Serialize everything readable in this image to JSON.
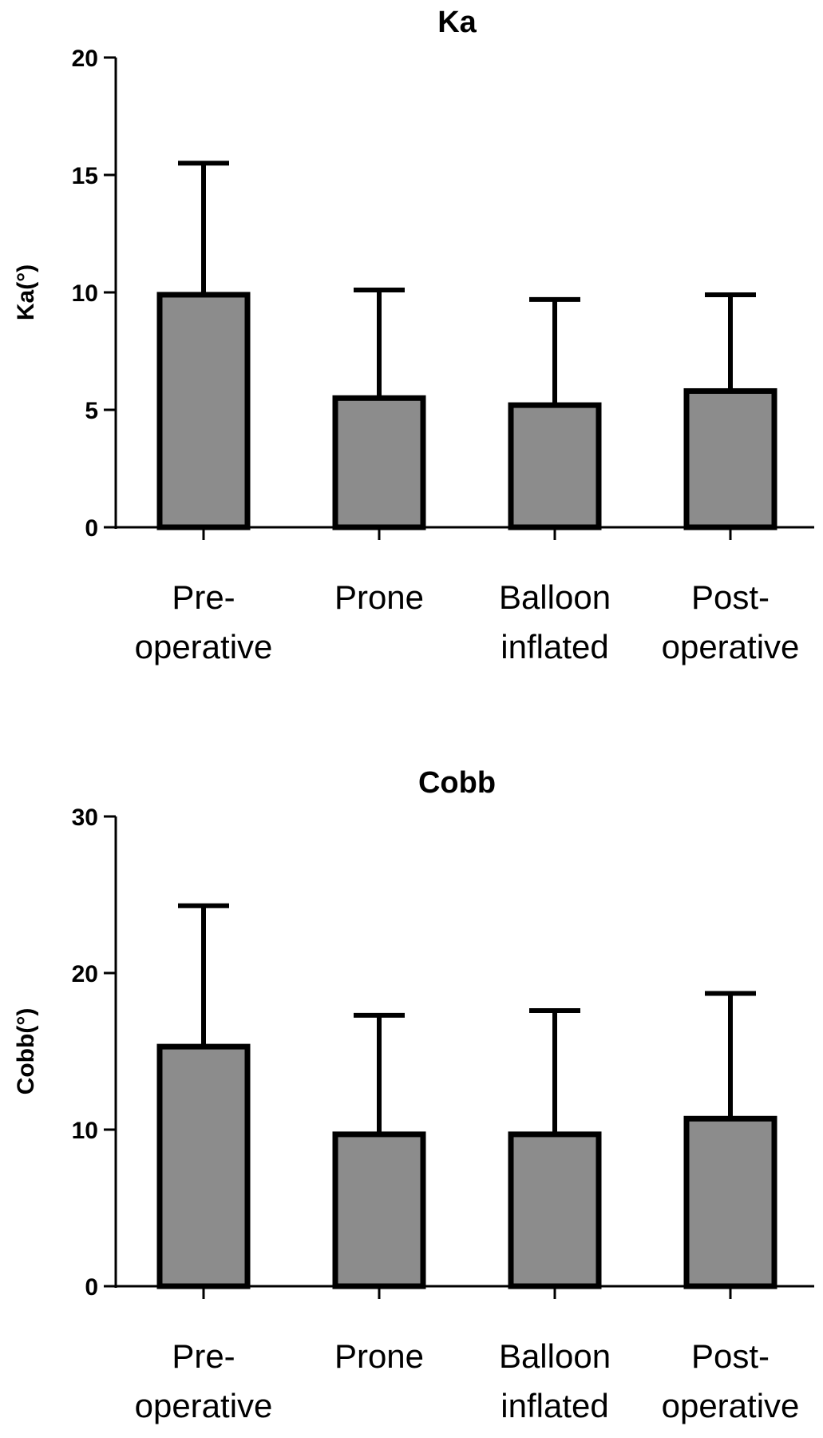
{
  "chart_data": [
    {
      "type": "bar",
      "title": "Ka",
      "ylabel": "Ka(°)",
      "xlabel": "",
      "ylim": [
        0,
        20
      ],
      "yticks": [
        0,
        5,
        10,
        15,
        20
      ],
      "categories": [
        [
          "Pre-",
          "operative"
        ],
        [
          "Prone"
        ],
        [
          "Balloon",
          "inflated"
        ],
        [
          "Post-",
          "operative"
        ]
      ],
      "values": [
        9.9,
        5.5,
        5.2,
        5.8
      ],
      "error_upper": [
        15.5,
        10.1,
        9.7,
        9.9
      ],
      "bar_color": "#8c8c8c",
      "grid": false
    },
    {
      "type": "bar",
      "title": "Cobb",
      "ylabel": "Cobb(°)",
      "xlabel": "",
      "ylim": [
        0,
        30
      ],
      "yticks": [
        0,
        10,
        20,
        30
      ],
      "categories": [
        [
          "Pre-",
          "operative"
        ],
        [
          "Prone"
        ],
        [
          "Balloon",
          "inflated"
        ],
        [
          "Post-",
          "operative"
        ]
      ],
      "values": [
        15.3,
        9.7,
        9.7,
        10.7
      ],
      "error_upper": [
        24.3,
        17.3,
        17.6,
        18.7
      ],
      "bar_color": "#8c8c8c",
      "grid": false
    }
  ]
}
